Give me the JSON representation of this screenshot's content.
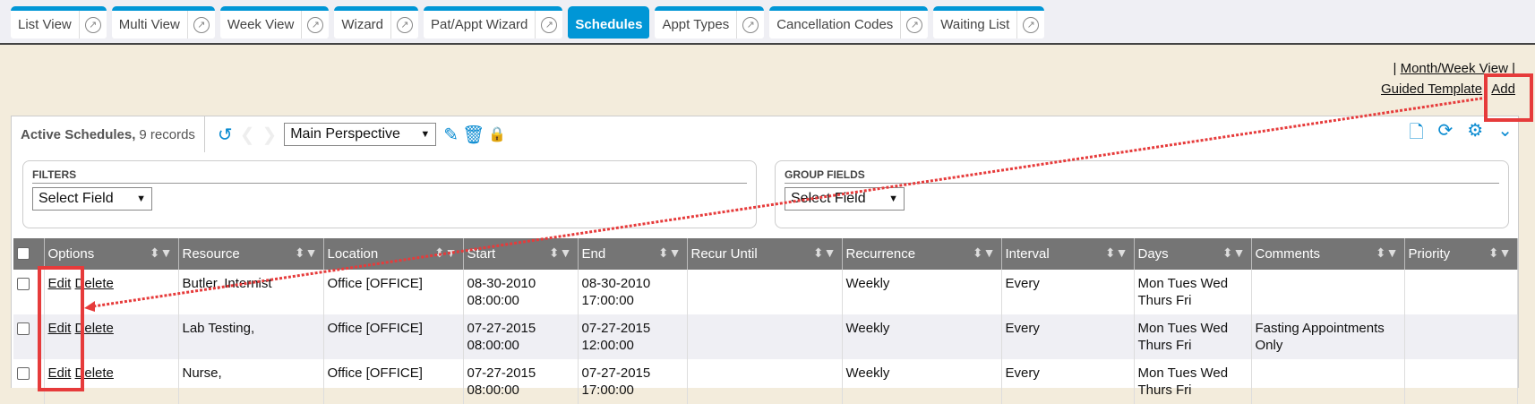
{
  "tabs": [
    {
      "label": "List View"
    },
    {
      "label": "Multi View"
    },
    {
      "label": "Week View"
    },
    {
      "label": "Wizard"
    },
    {
      "label": "Pat/Appt Wizard"
    },
    {
      "label": "Schedules",
      "active": true
    },
    {
      "label": "Appt Types"
    },
    {
      "label": "Cancellation Codes"
    },
    {
      "label": "Waiting List"
    }
  ],
  "links": {
    "sep": "|",
    "month_week": "Month/Week View",
    "guided": "Guided Template",
    "add": "Add"
  },
  "panel": {
    "title": "Active Schedules,",
    "count": "9 records",
    "perspective": "Main Perspective"
  },
  "filters": {
    "title": "FILTERS",
    "select": "Select Field"
  },
  "group": {
    "title": "GROUP FIELDS",
    "select": "Select Field"
  },
  "columns": [
    "Options",
    "Resource",
    "Location",
    "Start",
    "End",
    "Recur Until",
    "Recurrence",
    "Interval",
    "Days",
    "Comments",
    "Priority"
  ],
  "row_actions": {
    "edit": "Edit",
    "delete": "Delete"
  },
  "rows": [
    {
      "resource": "Butler, Internist",
      "location": "Office [OFFICE]",
      "start_date": "08-30-2010",
      "start_time": "08:00:00",
      "end_date": "08-30-2010",
      "end_time": "17:00:00",
      "recur_until": "",
      "recurrence": "Weekly",
      "interval": "Every",
      "days": "Mon Tues Wed Thurs Fri",
      "comments": "",
      "priority": ""
    },
    {
      "resource": "Lab Testing,",
      "location": "Office [OFFICE]",
      "start_date": "07-27-2015",
      "start_time": "08:00:00",
      "end_date": "07-27-2015",
      "end_time": "12:00:00",
      "recur_until": "",
      "recurrence": "Weekly",
      "interval": "Every",
      "days": "Mon Tues Wed Thurs Fri",
      "comments": "Fasting Appointments Only",
      "priority": ""
    },
    {
      "resource": "Nurse,",
      "location": "Office [OFFICE]",
      "start_date": "07-27-2015",
      "start_time": "08:00:00",
      "end_date": "07-27-2015",
      "end_time": "17:00:00",
      "recur_until": "",
      "recurrence": "Weekly",
      "interval": "Every",
      "days": "Mon Tues Wed Thurs Fri",
      "comments": "",
      "priority": ""
    }
  ],
  "colors": {
    "accent": "#0096d6",
    "header": "#757575",
    "annotation": "#e63b3b",
    "background": "#f3ecdc"
  }
}
